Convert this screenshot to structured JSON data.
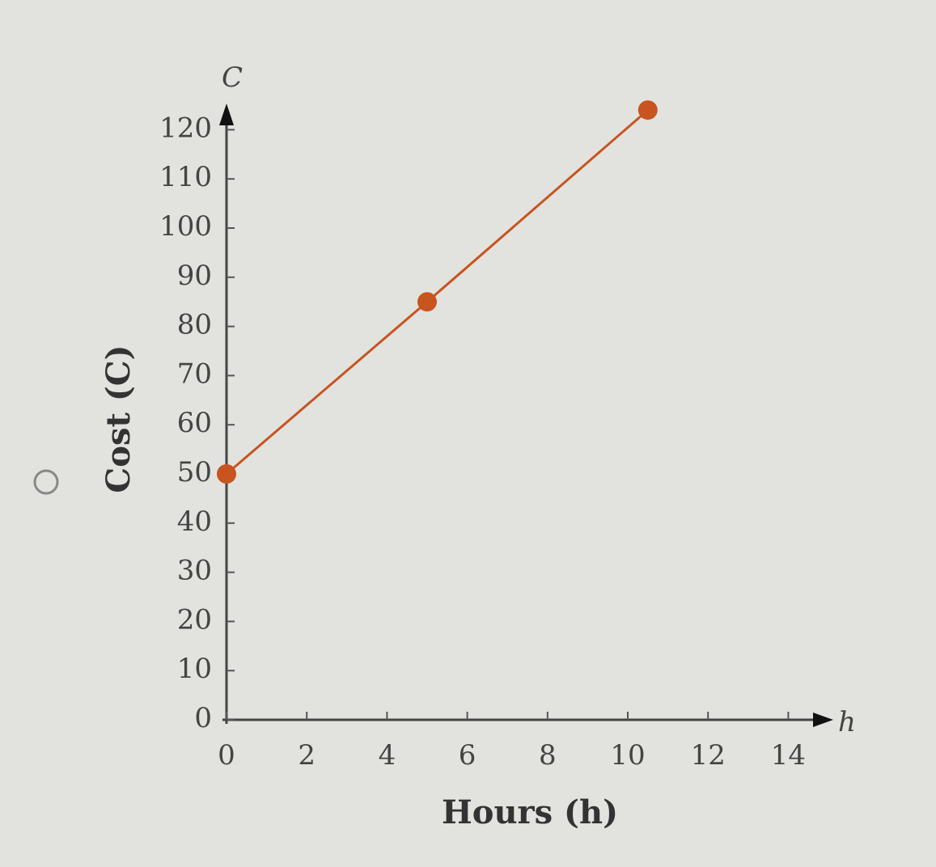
{
  "chart_data": {
    "type": "line",
    "x_axis_label": "Hours (h)",
    "y_axis_label": "Cost (C)",
    "x_axis_letter": "h",
    "y_axis_letter": "C",
    "x": [
      0,
      5,
      10.5
    ],
    "series": [
      {
        "name": "Cost",
        "color": "#c8541f",
        "values": [
          50,
          85,
          124
        ]
      }
    ],
    "xlim": [
      0,
      15
    ],
    "ylim": [
      0,
      125
    ],
    "xticks": [
      0,
      2,
      4,
      6,
      8,
      10,
      12,
      14
    ],
    "yticks": [
      0,
      10,
      20,
      30,
      40,
      50,
      60,
      70,
      80,
      90,
      100,
      110,
      120
    ],
    "grid": false
  }
}
